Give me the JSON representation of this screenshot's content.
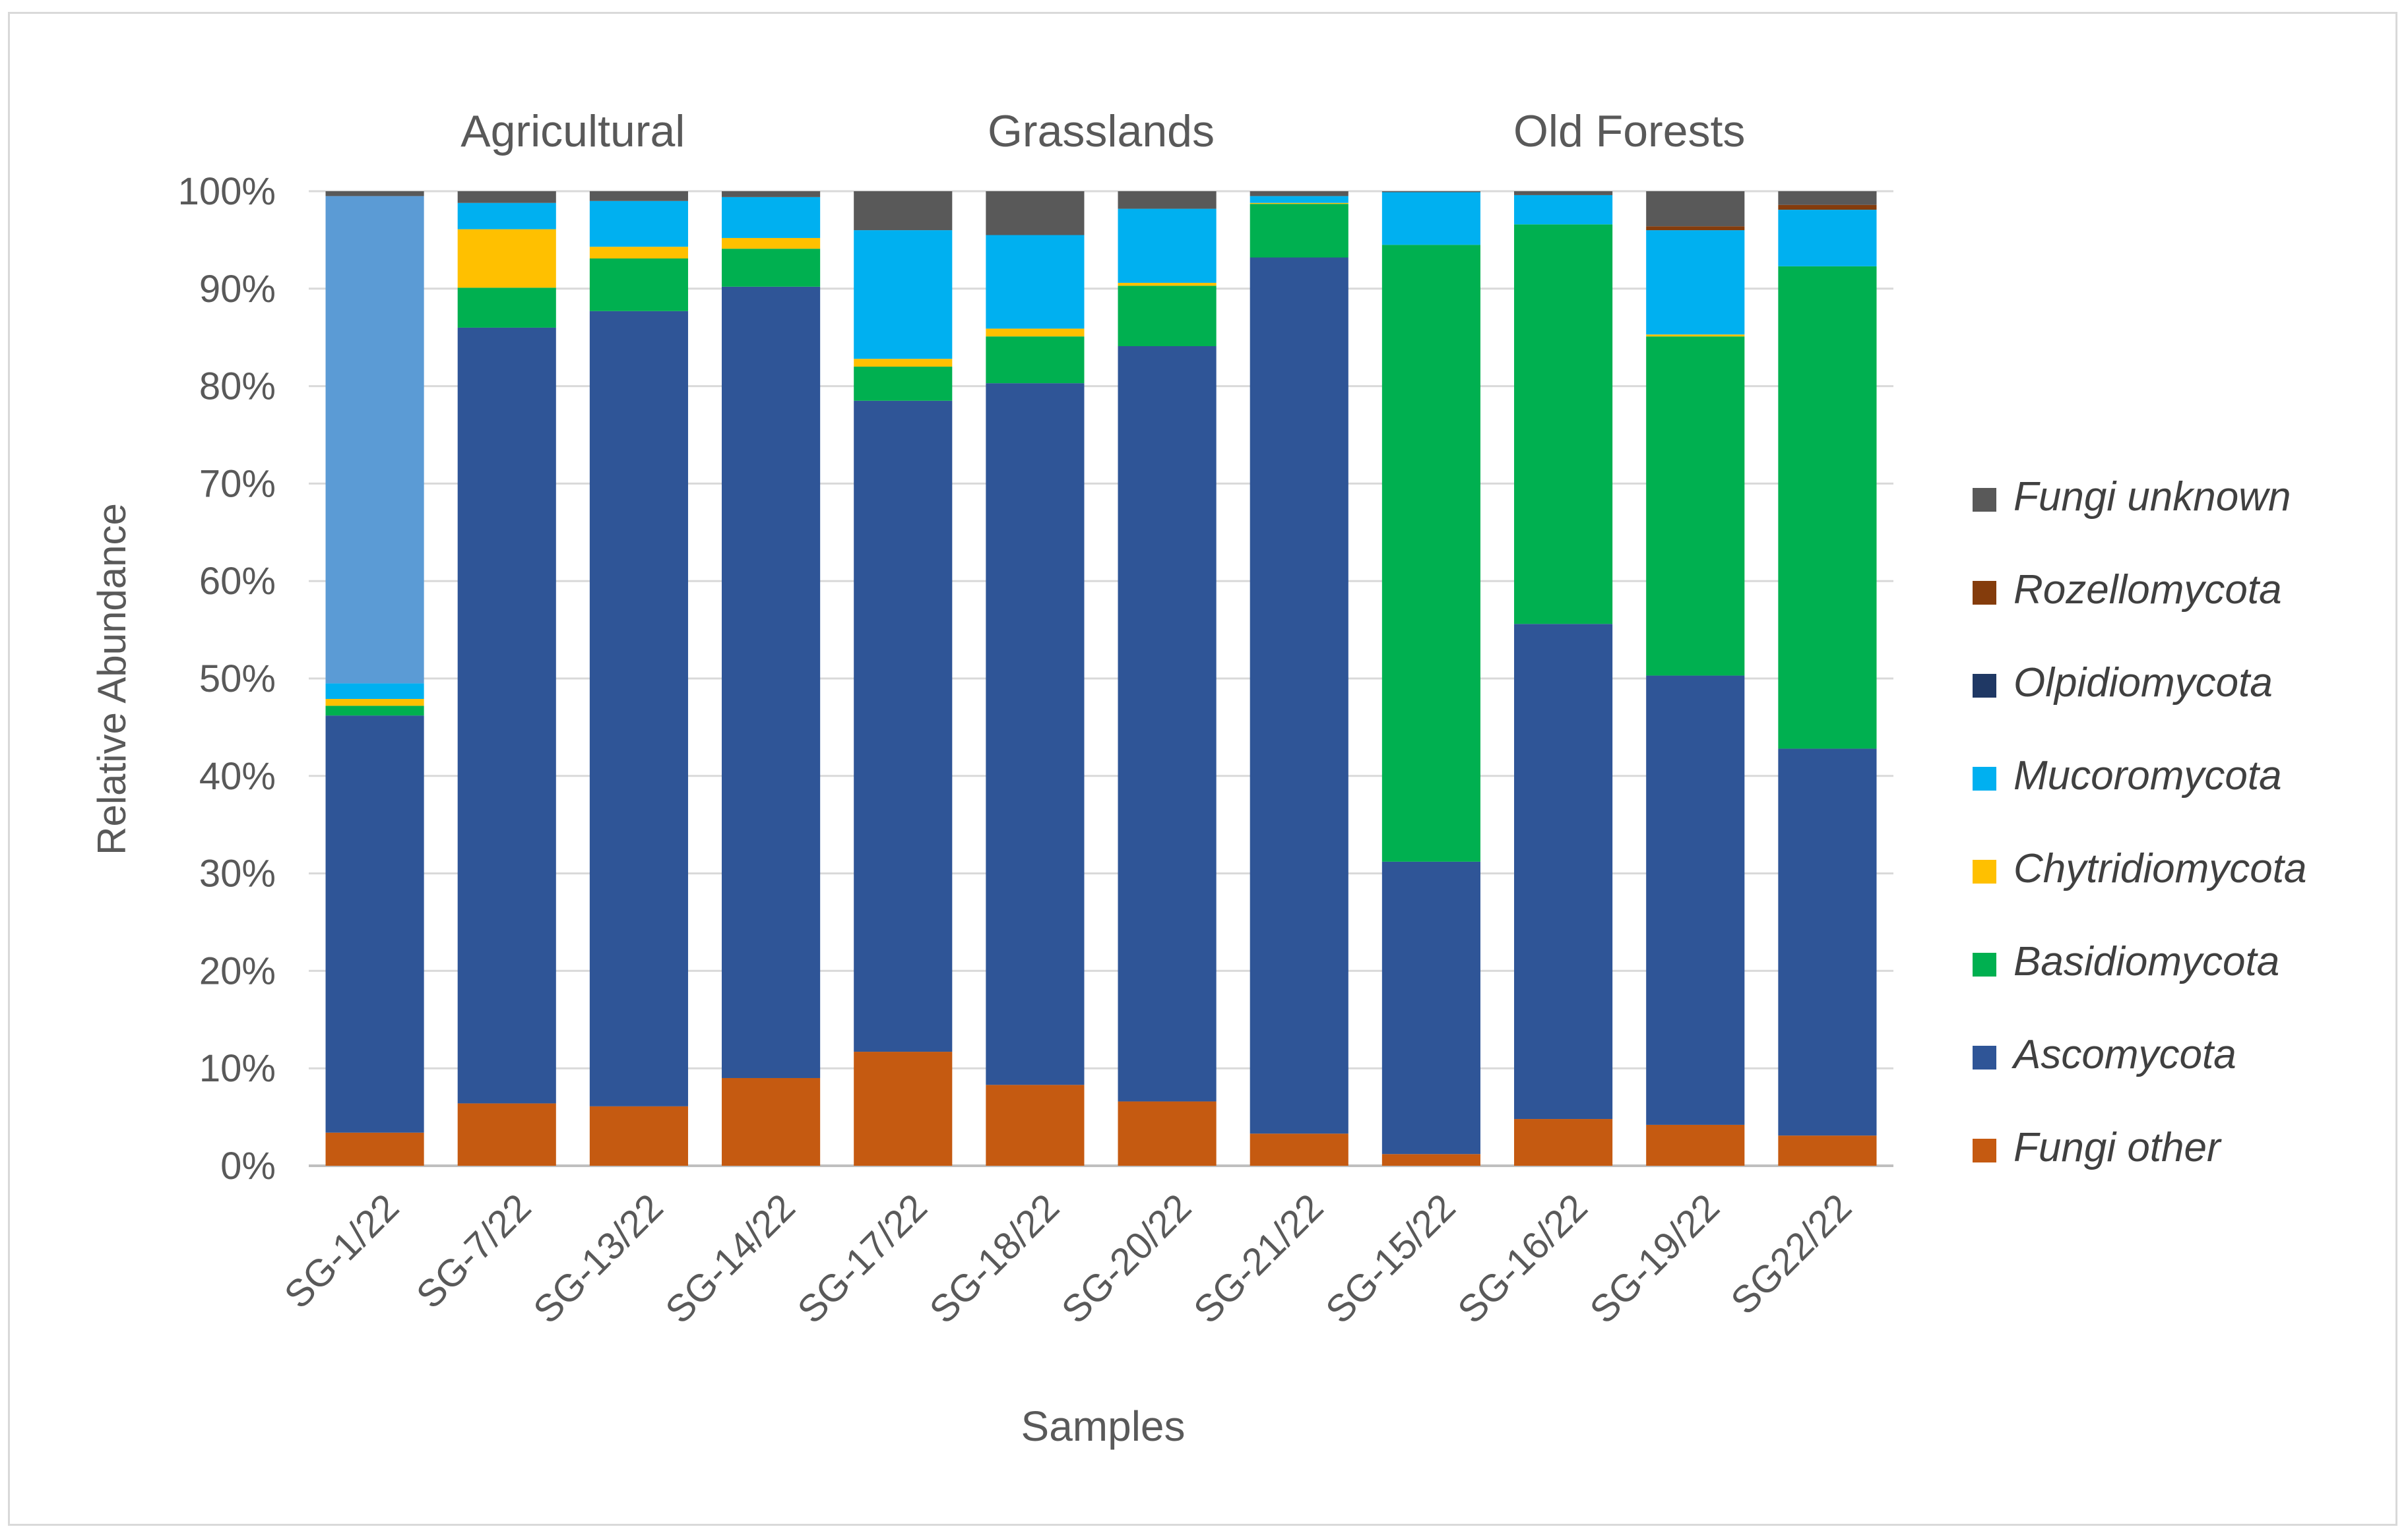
{
  "chart_data": {
    "type": "bar",
    "stacked": true,
    "xlabel": "Samples",
    "ylabel": "Relative Abundance",
    "ylim": [
      0,
      100
    ],
    "yticks": [
      "0%",
      "10%",
      "20%",
      "30%",
      "40%",
      "50%",
      "60%",
      "70%",
      "80%",
      "90%",
      "100%"
    ],
    "grid": true,
    "legend_position": "right",
    "groups": [
      {
        "label": "Agricultural",
        "categories": [
          "SG-1/22",
          "SG-7/22",
          "SG-13/22",
          "SG-14/22"
        ]
      },
      {
        "label": "Grasslands",
        "categories": [
          "SG-17/22",
          "SG-18/22",
          "SG-20/22",
          "SG-21/22"
        ]
      },
      {
        "label": "Old Forests",
        "categories": [
          "SG-15/22",
          "SG-16/22",
          "SG-19/22",
          "SG22/22"
        ]
      }
    ],
    "categories": [
      "SG-1/22",
      "SG-7/22",
      "SG-13/22",
      "SG-14/22",
      "SG-17/22",
      "SG-18/22",
      "SG-20/22",
      "SG-21/22",
      "SG-15/22",
      "SG-16/22",
      "SG-19/22",
      "SG22/22"
    ],
    "series": [
      {
        "name": "Fungi other",
        "color": "#c55a11",
        "values": [
          3.4,
          6.4,
          6.1,
          9.0,
          11.7,
          8.3,
          6.6,
          3.3,
          1.2,
          4.8,
          4.2,
          3.1
        ]
      },
      {
        "name": "Ascomycota",
        "color": "#2f5597",
        "values": [
          42.8,
          79.6,
          81.6,
          81.2,
          66.8,
          72.0,
          77.5,
          89.9,
          30.0,
          50.8,
          46.1,
          39.7
        ]
      },
      {
        "name": "Basidiomycota",
        "color": "#00b050",
        "values": [
          1.0,
          4.1,
          5.4,
          3.9,
          3.5,
          4.8,
          6.2,
          5.5,
          63.3,
          41.0,
          34.8,
          49.5
        ]
      },
      {
        "name": "Chytridiomycota",
        "color": "#ffc000",
        "values": [
          0.7,
          6.0,
          1.2,
          1.1,
          0.8,
          0.8,
          0.3,
          0.1,
          0.0,
          0.0,
          0.2,
          0.0
        ]
      },
      {
        "name": "Mucoromycota",
        "color": "#00b0f0",
        "values": [
          1.6,
          2.7,
          4.7,
          4.2,
          13.2,
          9.6,
          7.6,
          0.7,
          5.4,
          3.0,
          10.7,
          5.8
        ]
      },
      {
        "name": "Olpidiomycota",
        "color": "#1f3864",
        "values": [
          0.0,
          0.0,
          0.0,
          0.0,
          0.0,
          0.0,
          0.0,
          0.0,
          0.0,
          0.0,
          0.0,
          0.0
        ]
      },
      {
        "name": "",
        "color": "#5b9bd5",
        "values": [
          50.0,
          0.0,
          0.0,
          0.0,
          0.0,
          0.0,
          0.0,
          0.0,
          0.0,
          0.0,
          0.0,
          0.0
        ]
      },
      {
        "name": "Rozellomycota",
        "color": "#843c0c",
        "values": [
          0.0,
          0.0,
          0.0,
          0.0,
          0.0,
          0.0,
          0.0,
          0.0,
          0.0,
          0.0,
          0.4,
          0.5
        ]
      },
      {
        "name": "Fungi unknown",
        "color": "#595959",
        "values": [
          0.5,
          1.2,
          1.0,
          0.6,
          4.0,
          4.5,
          1.8,
          0.5,
          0.1,
          0.4,
          3.6,
          1.4
        ]
      }
    ],
    "legend": [
      "Fungi unknown",
      "Rozellomycota",
      "Olpidiomycota",
      "Mucoromycota",
      "Chytridiomycota",
      "Basidiomycota",
      "Ascomycota",
      "Fungi other"
    ]
  }
}
